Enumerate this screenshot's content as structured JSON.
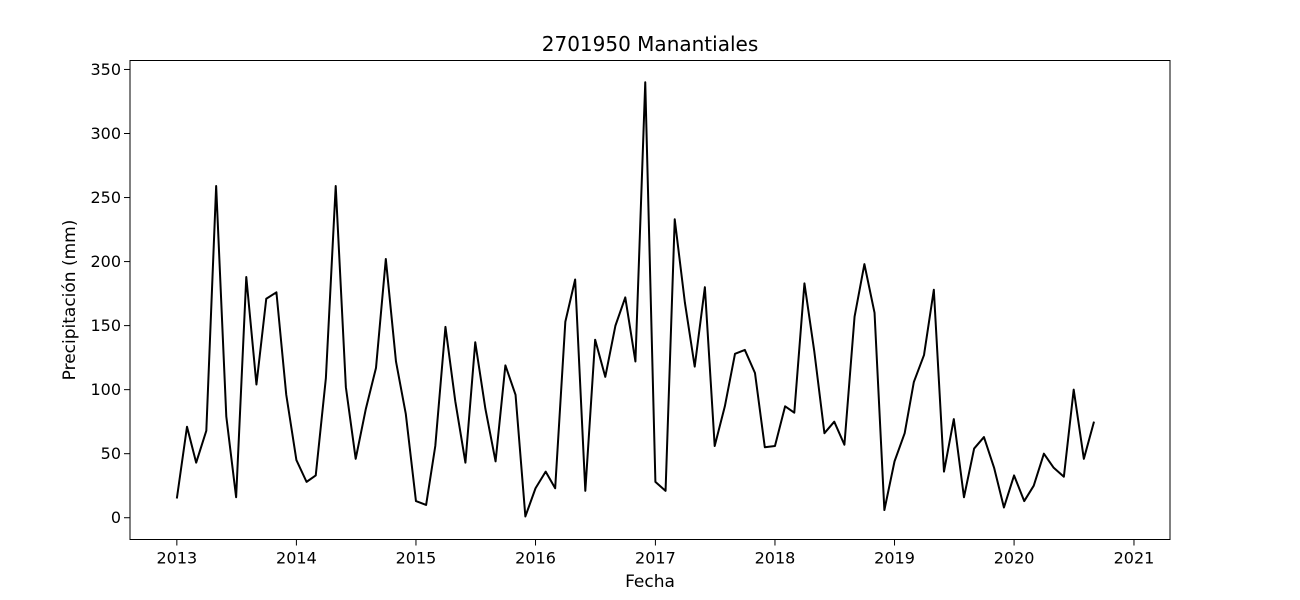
{
  "chart_data": {
    "type": "line",
    "title": "2701950 Manantiales",
    "xlabel": "Fecha",
    "ylabel": "Precipitación (mm)",
    "x_tick_labels": [
      "2013",
      "2014",
      "2015",
      "2016",
      "2017",
      "2018",
      "2019",
      "2020",
      "2021"
    ],
    "y_ticks": [
      0,
      50,
      100,
      150,
      200,
      250,
      300,
      350
    ],
    "xlim": [
      "2012-08-11",
      "2021-04-21"
    ],
    "ylim": [
      -17,
      357
    ],
    "grid": false,
    "line_color": "#000000",
    "series": [
      {
        "x": [
          "2013-01",
          "2013-02",
          "2013-03",
          "2013-04",
          "2013-05",
          "2013-06",
          "2013-07",
          "2013-08",
          "2013-09",
          "2013-10",
          "2013-11",
          "2013-12",
          "2014-01",
          "2014-02",
          "2014-03",
          "2014-04",
          "2014-05",
          "2014-06",
          "2014-07",
          "2014-08",
          "2014-09",
          "2014-10",
          "2014-11",
          "2014-12",
          "2015-01",
          "2015-02",
          "2015-03",
          "2015-04",
          "2015-05",
          "2015-06",
          "2015-07",
          "2015-08",
          "2015-09",
          "2015-10",
          "2015-11",
          "2015-12",
          "2016-01",
          "2016-02",
          "2016-03",
          "2016-04",
          "2016-05",
          "2016-06",
          "2016-07",
          "2016-08",
          "2016-09",
          "2016-10",
          "2016-11",
          "2016-12",
          "2017-01",
          "2017-02",
          "2017-03",
          "2017-04",
          "2017-05",
          "2017-06",
          "2017-07",
          "2017-08",
          "2017-09",
          "2017-10",
          "2017-11",
          "2017-12",
          "2018-01",
          "2018-02",
          "2018-03",
          "2018-04",
          "2018-05",
          "2018-06",
          "2018-07",
          "2018-08",
          "2018-09",
          "2018-10",
          "2018-11",
          "2018-12",
          "2019-01",
          "2019-02",
          "2019-03",
          "2019-04",
          "2019-05",
          "2019-06",
          "2019-07",
          "2019-08",
          "2019-09",
          "2019-10",
          "2019-11",
          "2019-12",
          "2020-01",
          "2020-02",
          "2020-03",
          "2020-04",
          "2020-05",
          "2020-06",
          "2020-07",
          "2020-08",
          "2020-09"
        ],
        "y": [
          15,
          71,
          43,
          68,
          259,
          79,
          16,
          188,
          104,
          171,
          176,
          96,
          45,
          28,
          33,
          109,
          259,
          102,
          46,
          85,
          117,
          202,
          122,
          81,
          13,
          10,
          56,
          149,
          91,
          43,
          137,
          85,
          44,
          119,
          96,
          1,
          23,
          36,
          23,
          153,
          186,
          21,
          139,
          110,
          150,
          172,
          122,
          340,
          28,
          21,
          233,
          168,
          118,
          180,
          56,
          87,
          128,
          131,
          113,
          55,
          56,
          87,
          82,
          183,
          130,
          66,
          75,
          57,
          157,
          198,
          160,
          6,
          44,
          66,
          106,
          127,
          178,
          36,
          77,
          16,
          54,
          63,
          39,
          8,
          33,
          13,
          25,
          50,
          39,
          32,
          100,
          46,
          75
        ]
      }
    ]
  }
}
